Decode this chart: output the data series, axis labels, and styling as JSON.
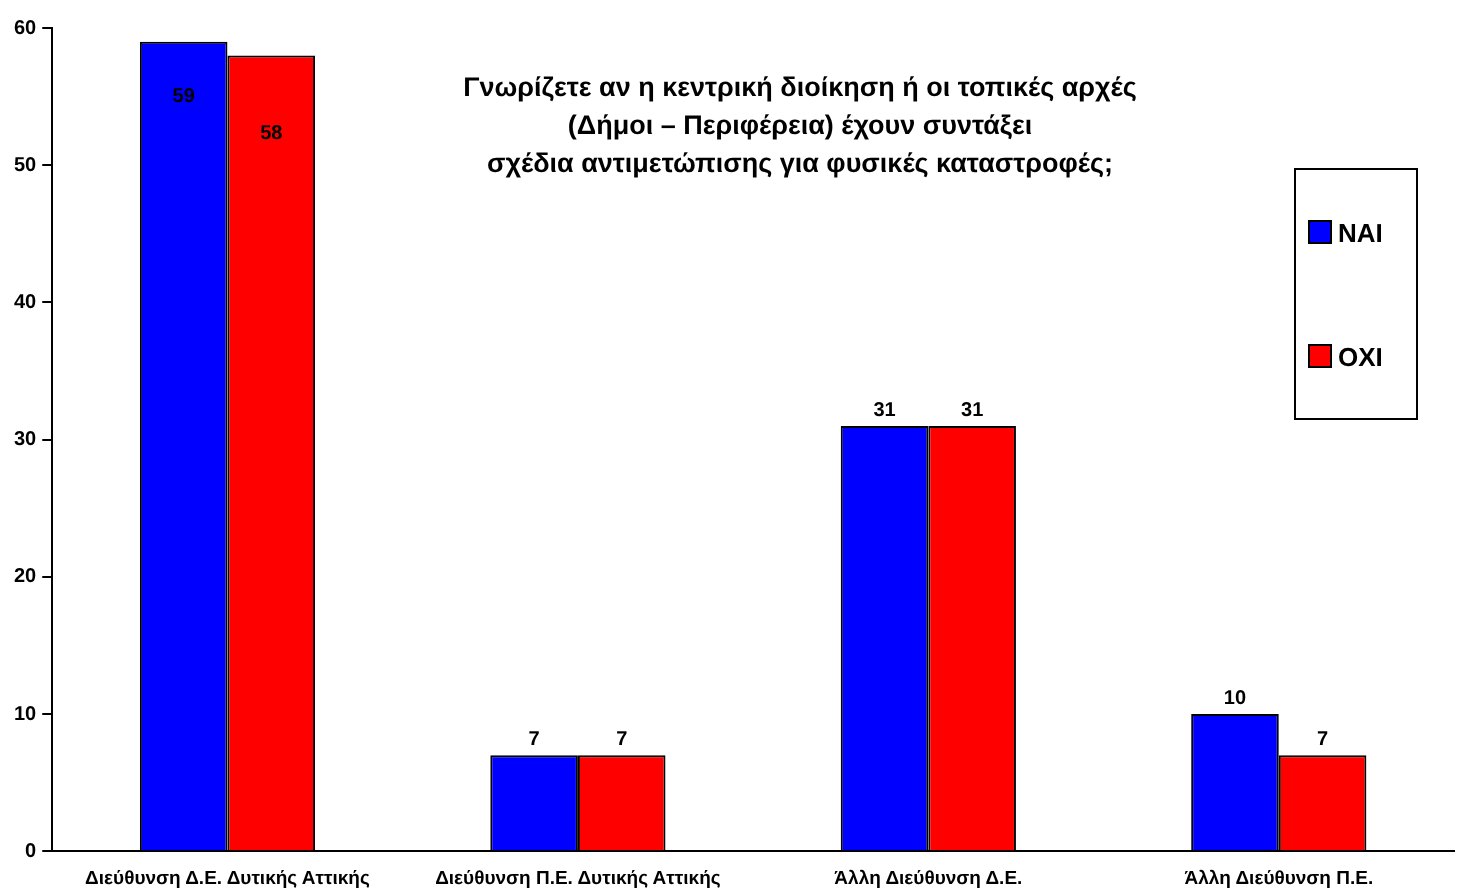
{
  "chart_data": {
    "type": "bar",
    "title": "Γνωρίζετε αν η κεντρική διοίκηση ή οι τοπικές αρχές\n(Δήμοι – Περιφέρεια) έχουν συντάξει\nσχέδια αντιμετώπισης για φυσικές καταστροφές;",
    "categories": [
      "Διεύθυνση Δ.Ε. Δυτικής Αττικής",
      "Διεύθυνση Π.Ε. Δυτικής Αττικής",
      "Άλλη Διεύθυνση Δ.Ε.",
      "Άλλη Διεύθυνση Π.Ε."
    ],
    "series": [
      {
        "name": "ΝΑΙ",
        "color": "#0000ff",
        "values": [
          59,
          7,
          31,
          10
        ]
      },
      {
        "name": "ΟΧΙ",
        "color": "#ff0000",
        "values": [
          58,
          7,
          31,
          7
        ]
      }
    ],
    "ylim": [
      0,
      60
    ],
    "yticks": [
      0,
      10,
      20,
      30,
      40,
      50,
      60
    ],
    "grid": false,
    "legend": "right",
    "data_labels": true
  }
}
